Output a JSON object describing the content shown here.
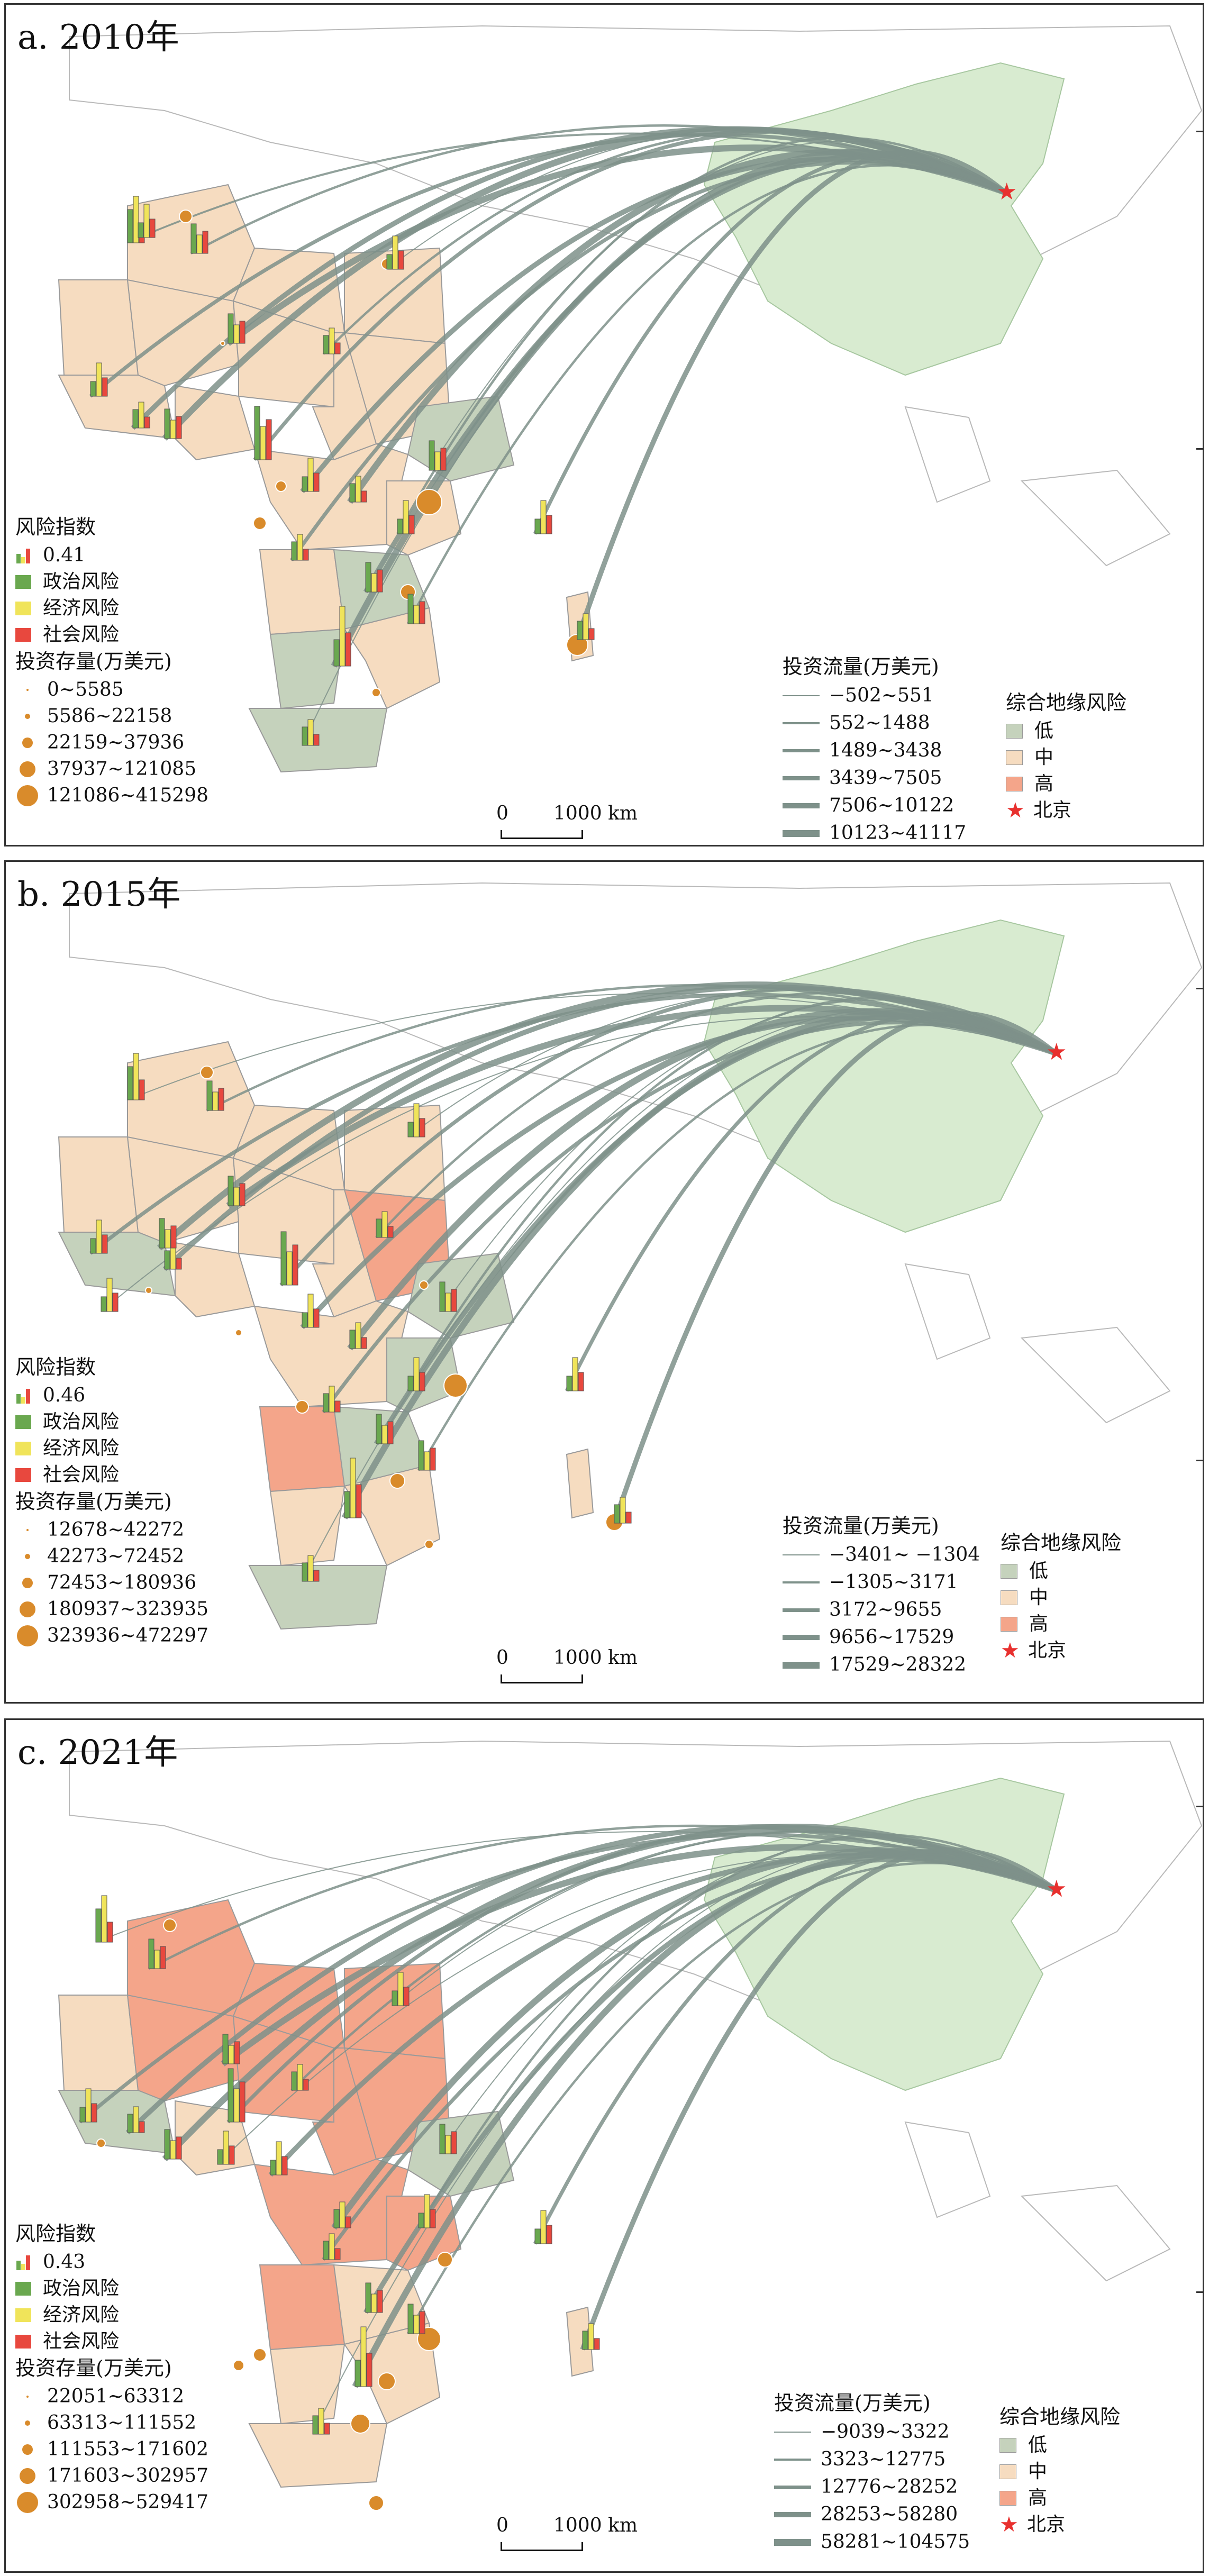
{
  "panels": [
    {
      "title": "a. 2010年",
      "risk_index": {
        "title": "风险指数",
        "value": "0.41",
        "items": [
          "政治风险",
          "经济风险",
          "社会风险"
        ]
      },
      "stock": {
        "title": "投资存量(万美元)",
        "ranges": [
          "0~5585",
          "5586~22158",
          "22159~37936",
          "37937~121085",
          "121086~415298"
        ]
      },
      "flow": {
        "title": "投资流量(万美元)",
        "ranges": [
          "−502~551",
          "552~1488",
          "1489~3438",
          "3439~7505",
          "7506~10122",
          "10123~41117"
        ]
      },
      "georisk": {
        "title": "综合地缘风险",
        "items": [
          "低",
          "中",
          "高"
        ],
        "capital": "北京"
      },
      "scale": {
        "zero": "0",
        "label": "1000 km"
      }
    },
    {
      "title": "b. 2015年",
      "risk_index": {
        "title": "风险指数",
        "value": "0.46",
        "items": [
          "政治风险",
          "经济风险",
          "社会风险"
        ]
      },
      "stock": {
        "title": "投资存量(万美元)",
        "ranges": [
          "12678~42272",
          "42273~72452",
          "72453~180936",
          "180937~323935",
          "323936~472297"
        ]
      },
      "flow": {
        "title": "投资流量(万美元)",
        "ranges": [
          "−3401~ −1304",
          "−1305~3171",
          "3172~9655",
          "9656~17529",
          "17529~28322"
        ]
      },
      "georisk": {
        "title": "综合地缘风险",
        "items": [
          "低",
          "中",
          "高"
        ],
        "capital": "北京"
      },
      "scale": {
        "zero": "0",
        "label": "1000 km"
      }
    },
    {
      "title": "c. 2021年",
      "risk_index": {
        "title": "风险指数",
        "value": "0.43",
        "items": [
          "政治风险",
          "经济风险",
          "社会风险"
        ]
      },
      "stock": {
        "title": "投资存量(万美元)",
        "ranges": [
          "22051~63312",
          "63313~111552",
          "111553~171602",
          "171603~302957",
          "302958~529417"
        ]
      },
      "flow": {
        "title": "投资流量(万美元)",
        "ranges": [
          "−9039~3322",
          "3323~12775",
          "12776~28252",
          "28253~58280",
          "58281~104575"
        ]
      },
      "georisk": {
        "title": "综合地缘风险",
        "items": [
          "低",
          "中",
          "高"
        ],
        "capital": "北京"
      },
      "scale": {
        "zero": "0",
        "label": "1000 km"
      }
    }
  ],
  "colors": {
    "risk_low": "#c5d2bc",
    "risk_mid": "#f6dcc0",
    "risk_high": "#f4a58a",
    "china": "#d8ebd0",
    "flow_line": "#7e918a",
    "political": "#6aa84f",
    "economic": "#f0e45a",
    "social": "#e8483e",
    "stock_dot": "#d98b2b",
    "beijing_star": "#e8302e"
  },
  "icons": {
    "capital": "red-star-icon",
    "risk_bar": "triple-bar-icon"
  }
}
